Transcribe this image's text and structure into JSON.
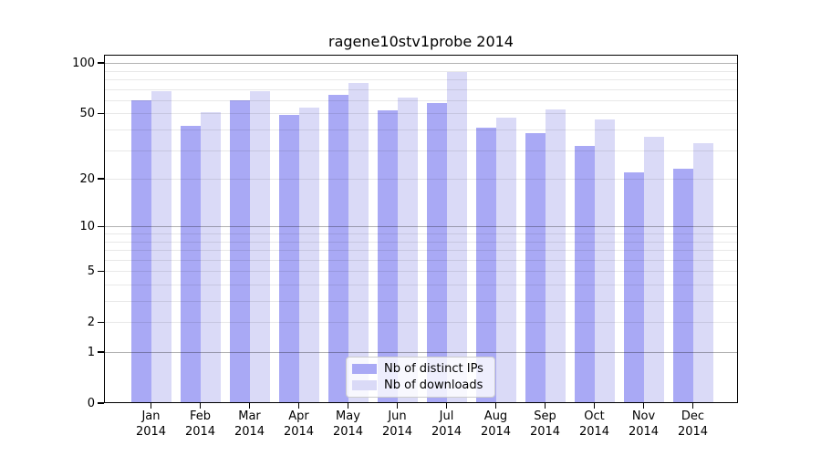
{
  "title": "ragene10stv1probe 2014",
  "colors": {
    "distinct_ips_bar": "#a9a9f5",
    "downloads_bar": "#dadaf7",
    "axis": "#000000",
    "background": "#ffffff"
  },
  "chart_data": {
    "type": "bar",
    "title": "ragene10stv1probe 2014",
    "categories": [
      "Jan",
      "Feb",
      "Mar",
      "Apr",
      "May",
      "Jun",
      "Jul",
      "Aug",
      "Sep",
      "Oct",
      "Nov",
      "Dec"
    ],
    "year_label": "2014",
    "series": [
      {
        "name": "Nb of distinct IPs",
        "color": "#a9a9f5",
        "values": [
          60,
          42,
          60,
          49,
          65,
          52,
          58,
          41,
          38,
          32,
          22,
          23
        ]
      },
      {
        "name": "Nb of downloads",
        "color": "#dadaf7",
        "values": [
          68,
          51,
          68,
          54,
          76,
          62,
          88,
          47,
          53,
          46,
          36,
          33
        ]
      }
    ],
    "xlabel": "",
    "ylabel": "",
    "yscale": "log10(1+value)",
    "ylim": [
      0,
      114
    ],
    "ytick_values": [
      0,
      1,
      2,
      5,
      10,
      20,
      50,
      100
    ],
    "minor_grid_values": [
      1,
      2,
      3,
      4,
      5,
      6,
      7,
      8,
      9,
      10,
      20,
      30,
      40,
      50,
      60,
      70,
      80,
      90,
      100
    ],
    "major_grid_values": [
      1,
      10,
      100
    ],
    "grid": true,
    "legend_position": "inside bottom-center"
  }
}
